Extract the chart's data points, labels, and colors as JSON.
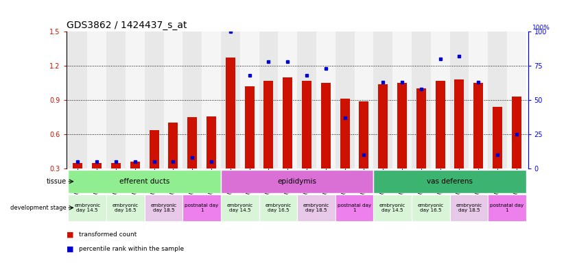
{
  "title": "GDS3862 / 1424437_s_at",
  "samples": [
    "GSM560923",
    "GSM560924",
    "GSM560925",
    "GSM560926",
    "GSM560927",
    "GSM560928",
    "GSM560929",
    "GSM560930",
    "GSM560931",
    "GSM560932",
    "GSM560933",
    "GSM560934",
    "GSM560935",
    "GSM560936",
    "GSM560937",
    "GSM560938",
    "GSM560939",
    "GSM560940",
    "GSM560941",
    "GSM560942",
    "GSM560943",
    "GSM560944",
    "GSM560945",
    "GSM560946"
  ],
  "red_values": [
    0.345,
    0.345,
    0.345,
    0.36,
    0.635,
    0.7,
    0.75,
    0.755,
    1.27,
    1.02,
    1.07,
    1.1,
    1.07,
    1.05,
    0.91,
    0.89,
    1.04,
    1.05,
    1.0,
    1.07,
    1.08,
    1.05,
    0.84,
    0.93
  ],
  "blue_pct": [
    5,
    5,
    5,
    5,
    5,
    5,
    8,
    5,
    100,
    68,
    78,
    78,
    68,
    73,
    37,
    10,
    63,
    63,
    58,
    80,
    82,
    63,
    10,
    25
  ],
  "ylim_left": [
    0.3,
    1.5
  ],
  "ylim_right": [
    0,
    100
  ],
  "yticks_left": [
    0.3,
    0.6,
    0.9,
    1.2,
    1.5
  ],
  "yticks_right": [
    0,
    25,
    50,
    75,
    100
  ],
  "tissue_groups": [
    {
      "label": "efferent ducts",
      "start": 0,
      "end": 8,
      "color": "#90EE90"
    },
    {
      "label": "epididymis",
      "start": 8,
      "end": 16,
      "color": "#DA70D6"
    },
    {
      "label": "vas deferens",
      "start": 16,
      "end": 24,
      "color": "#3CB371"
    }
  ],
  "dev_stage_groups": [
    {
      "label": "embryonic\nday 14.5",
      "start": 0,
      "end": 2,
      "color": "#d8f5d8"
    },
    {
      "label": "embryonic\nday 16.5",
      "start": 2,
      "end": 4,
      "color": "#d8f5d8"
    },
    {
      "label": "embryonic\nday 18.5",
      "start": 4,
      "end": 6,
      "color": "#e8c8e8"
    },
    {
      "label": "postnatal day\n1",
      "start": 6,
      "end": 8,
      "color": "#ee80ee"
    },
    {
      "label": "embryonic\nday 14.5",
      "start": 8,
      "end": 10,
      "color": "#d8f5d8"
    },
    {
      "label": "embryonic\nday 16.5",
      "start": 10,
      "end": 12,
      "color": "#d8f5d8"
    },
    {
      "label": "embryonic\nday 18.5",
      "start": 12,
      "end": 14,
      "color": "#e8c8e8"
    },
    {
      "label": "postnatal day\n1",
      "start": 14,
      "end": 16,
      "color": "#ee80ee"
    },
    {
      "label": "embryonic\nday 14.5",
      "start": 16,
      "end": 18,
      "color": "#d8f5d8"
    },
    {
      "label": "embryonic\nday 16.5",
      "start": 18,
      "end": 20,
      "color": "#d8f5d8"
    },
    {
      "label": "embryonic\nday 18.5",
      "start": 20,
      "end": 22,
      "color": "#e8c8e8"
    },
    {
      "label": "postnatal day\n1",
      "start": 22,
      "end": 24,
      "color": "#ee80ee"
    }
  ],
  "bar_color": "#CC1100",
  "marker_color": "#0000CC",
  "background_color": "#ffffff",
  "bar_width": 0.5,
  "title_fontsize": 10,
  "tick_fontsize": 6,
  "label_fontsize": 7
}
